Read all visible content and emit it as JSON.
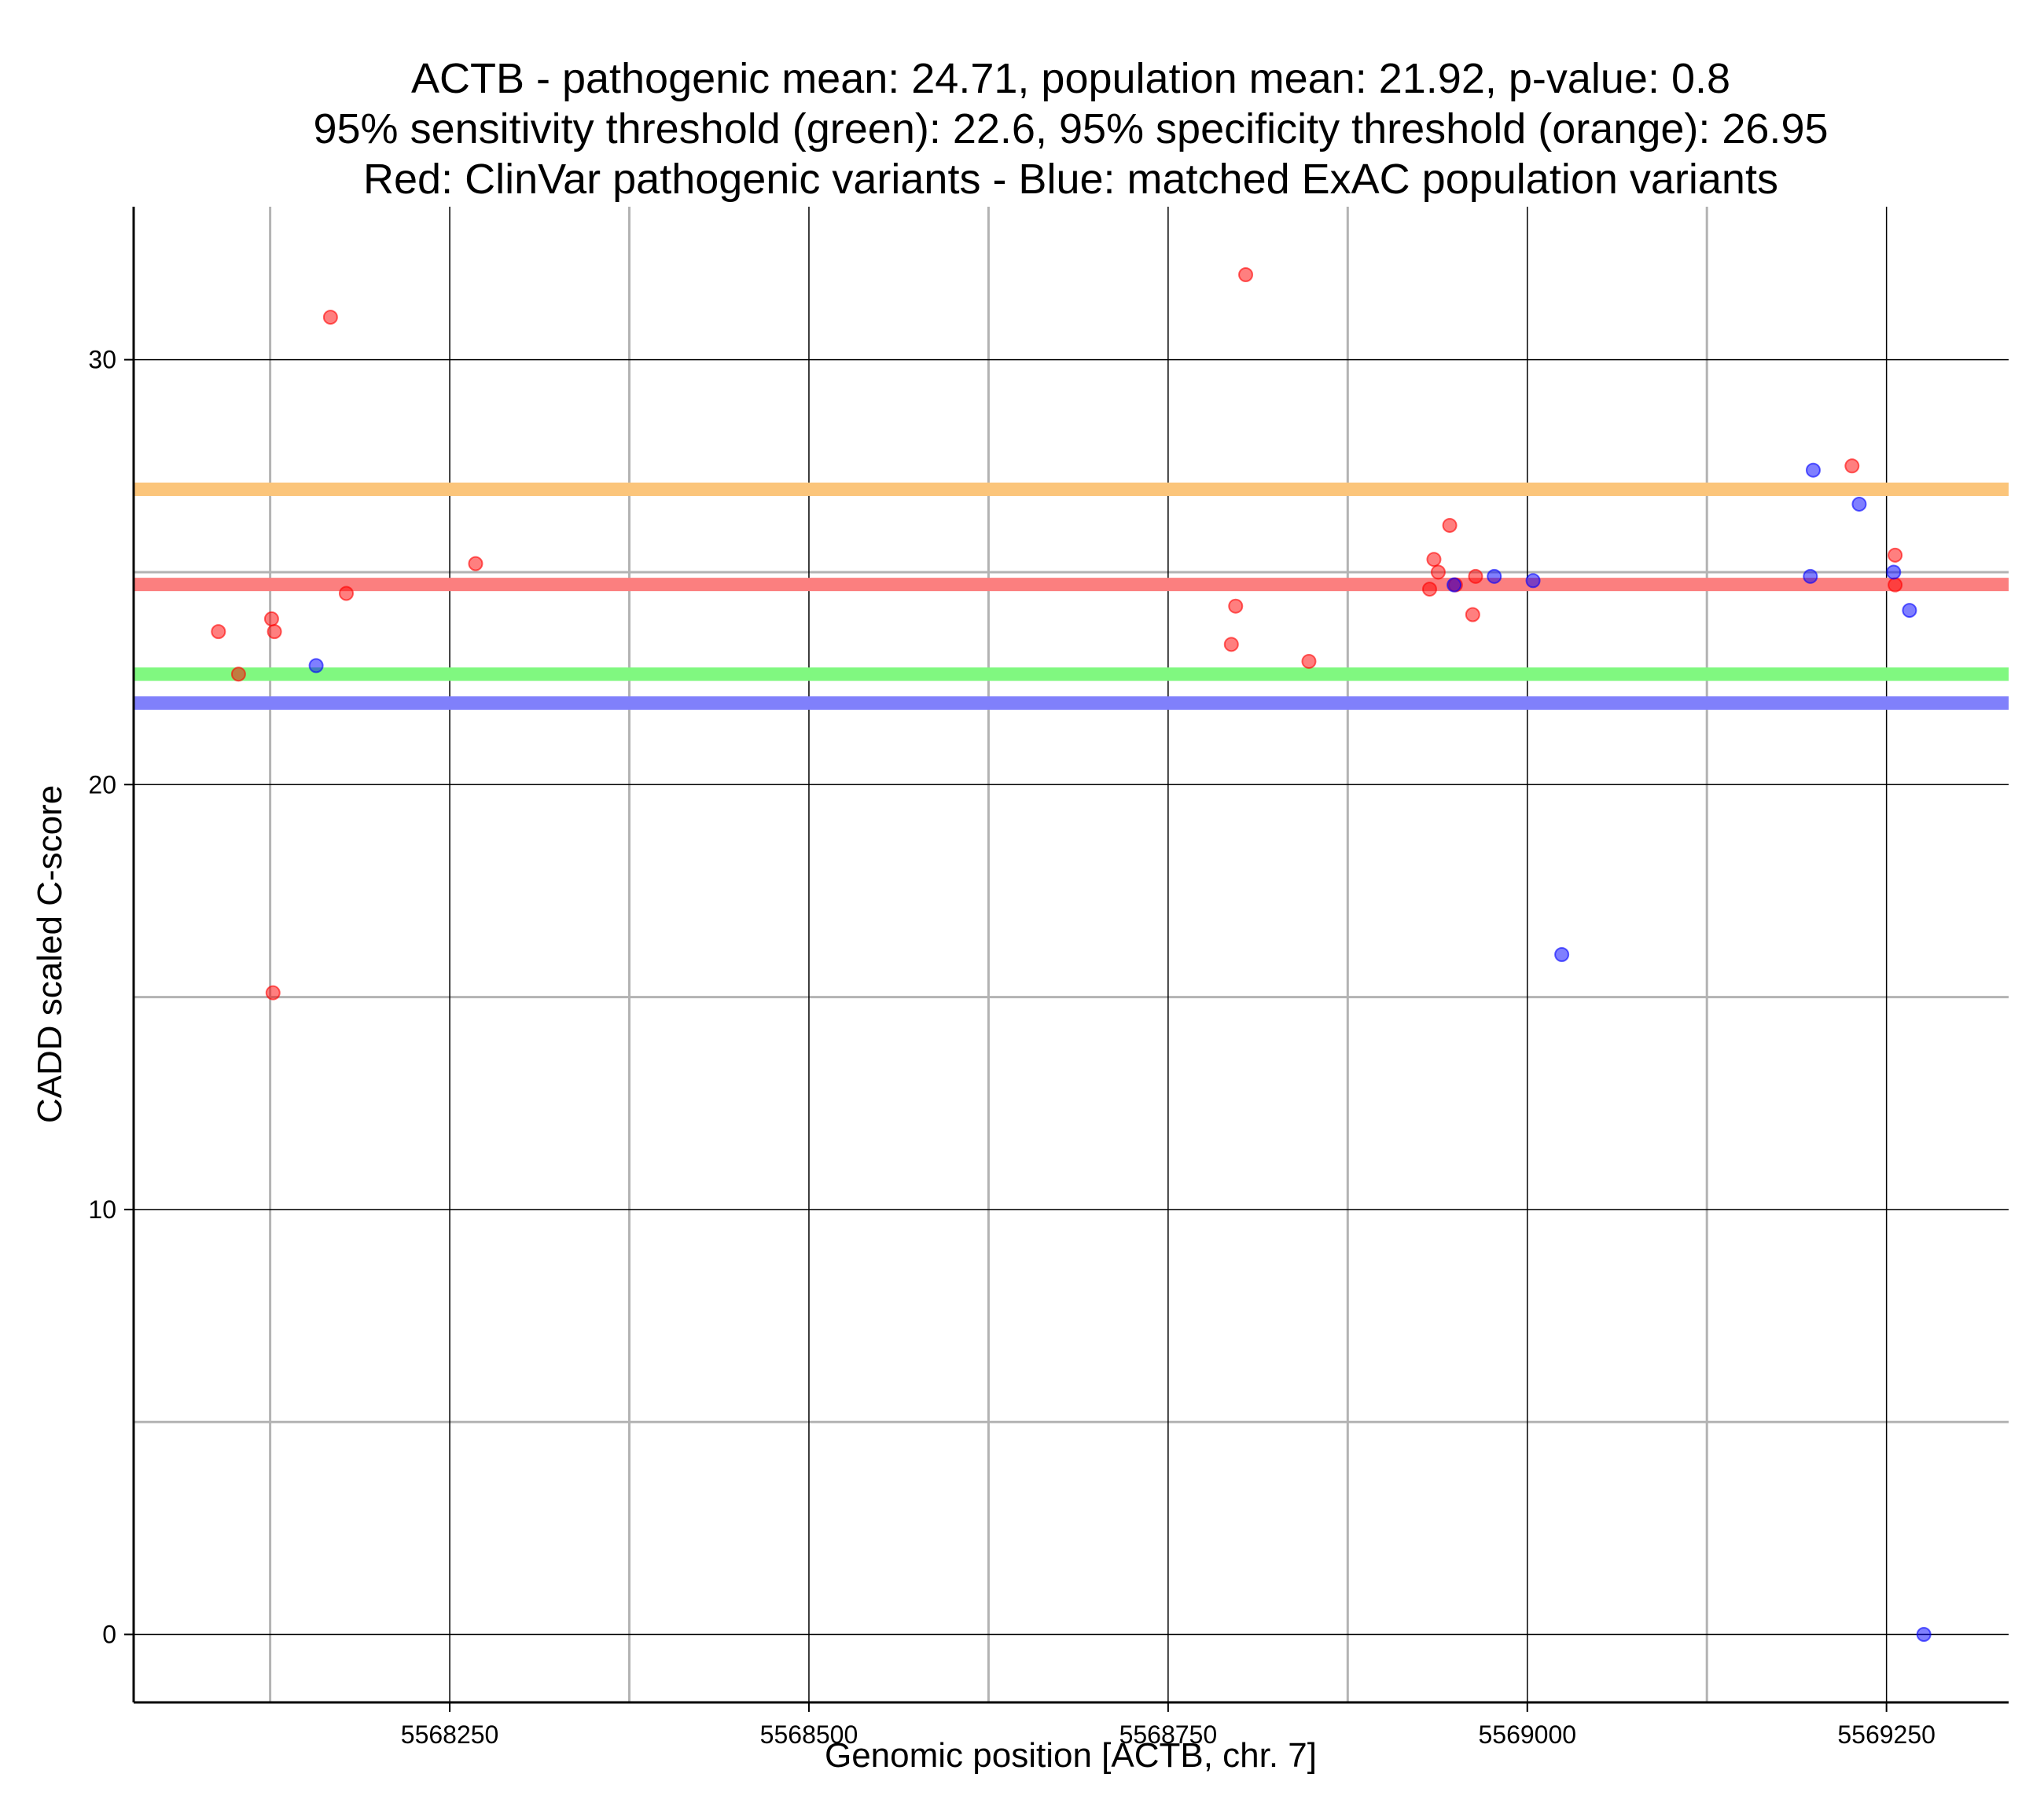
{
  "chart_data": {
    "type": "scatter",
    "title_lines": [
      "ACTB - pathogenic mean: 24.71, population mean: 21.92, p-value: 0.8",
      "95% sensitivity threshold (green): 22.6, 95% specificity threshold (orange): 26.95",
      "Red: ClinVar pathogenic variants - Blue: matched ExAC population variants"
    ],
    "xlabel": "Genomic position [ACTB, chr. 7]",
    "ylabel": "CADD scaled C-score",
    "xlim": [
      5568030,
      5569335
    ],
    "ylim": [
      -1.6,
      33.6
    ],
    "x_ticks": [
      5568250,
      5568500,
      5568750,
      5569000,
      5569250
    ],
    "x_tick_labels": [
      "5568250",
      "5568500",
      "5568750",
      "5569000",
      "5569250"
    ],
    "x_minor_gridlines": [
      5568125,
      5568375,
      5568625,
      5568875,
      5569125
    ],
    "y_ticks": [
      0,
      10,
      20,
      30
    ],
    "y_tick_labels": [
      "0",
      "10",
      "20",
      "30"
    ],
    "y_minor_gridlines": [
      5,
      15,
      25
    ],
    "reference_lines": [
      {
        "name": "specificity threshold",
        "value": 26.95,
        "color": "#fbc57b"
      },
      {
        "name": "pathogenic mean",
        "value": 24.71,
        "color": "#fb7f7f"
      },
      {
        "name": "sensitivity threshold",
        "value": 22.6,
        "color": "#80f880"
      },
      {
        "name": "population mean",
        "value": 21.92,
        "color": "#8080fb"
      }
    ],
    "series": [
      {
        "name": "ClinVar pathogenic variants",
        "color": "#ff0000",
        "points": [
          [
            5568089,
            23.6
          ],
          [
            5568103,
            22.6
          ],
          [
            5568126,
            23.9
          ],
          [
            5568128,
            23.6
          ],
          [
            5568127,
            15.1
          ],
          [
            5568167,
            31.0
          ],
          [
            5568178,
            24.5
          ],
          [
            5568268,
            25.2
          ],
          [
            5568794,
            23.3
          ],
          [
            5568797,
            24.2
          ],
          [
            5568804,
            32.0
          ],
          [
            5568848,
            22.9
          ],
          [
            5568932,
            24.6
          ],
          [
            5568935,
            25.3
          ],
          [
            5568938,
            25.0
          ],
          [
            5568946,
            26.1
          ],
          [
            5568950,
            24.7
          ],
          [
            5568962,
            24.0
          ],
          [
            5568964,
            24.9
          ],
          [
            5569226,
            27.5
          ],
          [
            5569256,
            25.4
          ],
          [
            5569256,
            24.7
          ]
        ]
      },
      {
        "name": "matched ExAC population variants",
        "color": "#0000ff",
        "points": [
          [
            5568157,
            22.8
          ],
          [
            5568949,
            24.7
          ],
          [
            5568977,
            24.9
          ],
          [
            5569004,
            24.8
          ],
          [
            5569024,
            16.0
          ],
          [
            5569197,
            24.9
          ],
          [
            5569199,
            27.4
          ],
          [
            5569231,
            26.6
          ],
          [
            5569255,
            25.0
          ],
          [
            5569266,
            24.1
          ],
          [
            5569276,
            0.0
          ]
        ]
      }
    ]
  }
}
